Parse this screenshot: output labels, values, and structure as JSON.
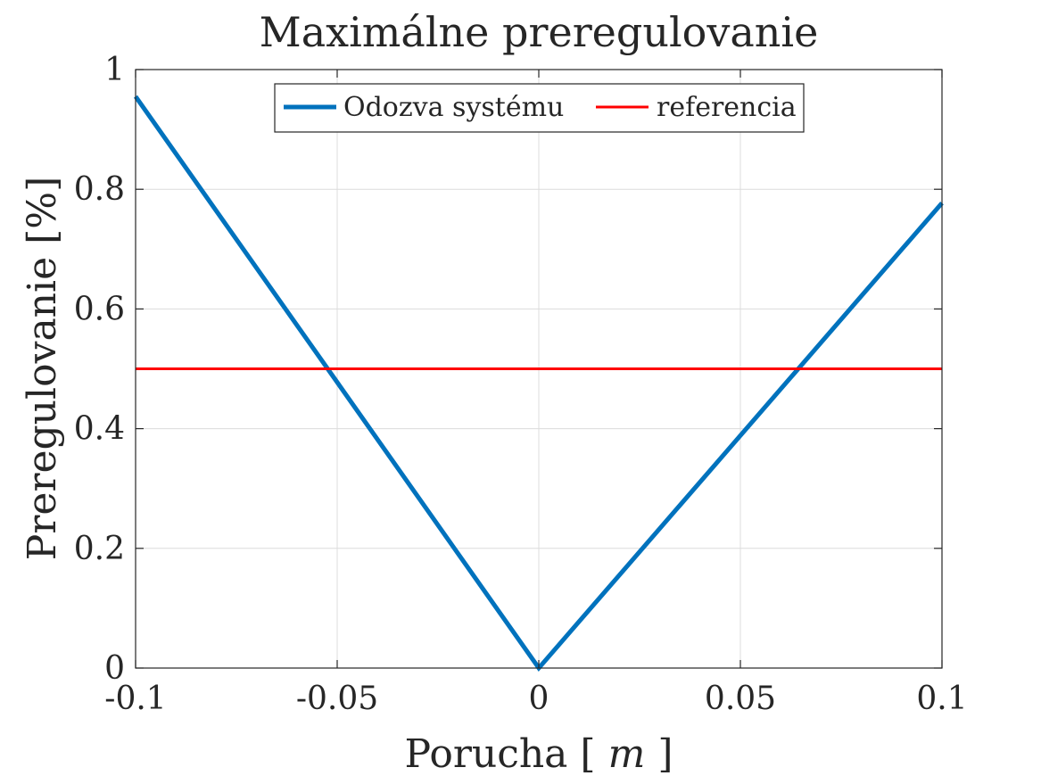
{
  "chart_data": {
    "type": "line",
    "title": "Maximálne preregulovanie",
    "xlabel": "Porucha [m]",
    "xlabel_main": "Porucha ",
    "xlabel_bracket_open": "[",
    "xlabel_unit": "m",
    "xlabel_bracket_close": "]",
    "ylabel": "Preregulovanie [%]",
    "xlim": [
      -0.1,
      0.1
    ],
    "ylim": [
      0,
      1
    ],
    "xticks": [
      -0.1,
      -0.05,
      0,
      0.05,
      0.1
    ],
    "xtick_labels": [
      "-0.1",
      "-0.05",
      "0",
      "0.05",
      "0.1"
    ],
    "yticks": [
      0,
      0.2,
      0.4,
      0.6,
      0.8,
      1
    ],
    "ytick_labels": [
      "0",
      "0.2",
      "0.4",
      "0.6",
      "0.8",
      "1"
    ],
    "grid": true,
    "legend_position": "top-center",
    "series": [
      {
        "name": "Odozva systému",
        "color": "#0072BD",
        "x": [
          -0.1,
          0,
          0.1
        ],
        "y": [
          0.955,
          0.0,
          0.777
        ]
      },
      {
        "name": "referencia",
        "color": "#FF0000",
        "x": [
          -0.1,
          0.1
        ],
        "y": [
          0.5,
          0.5
        ]
      }
    ]
  }
}
